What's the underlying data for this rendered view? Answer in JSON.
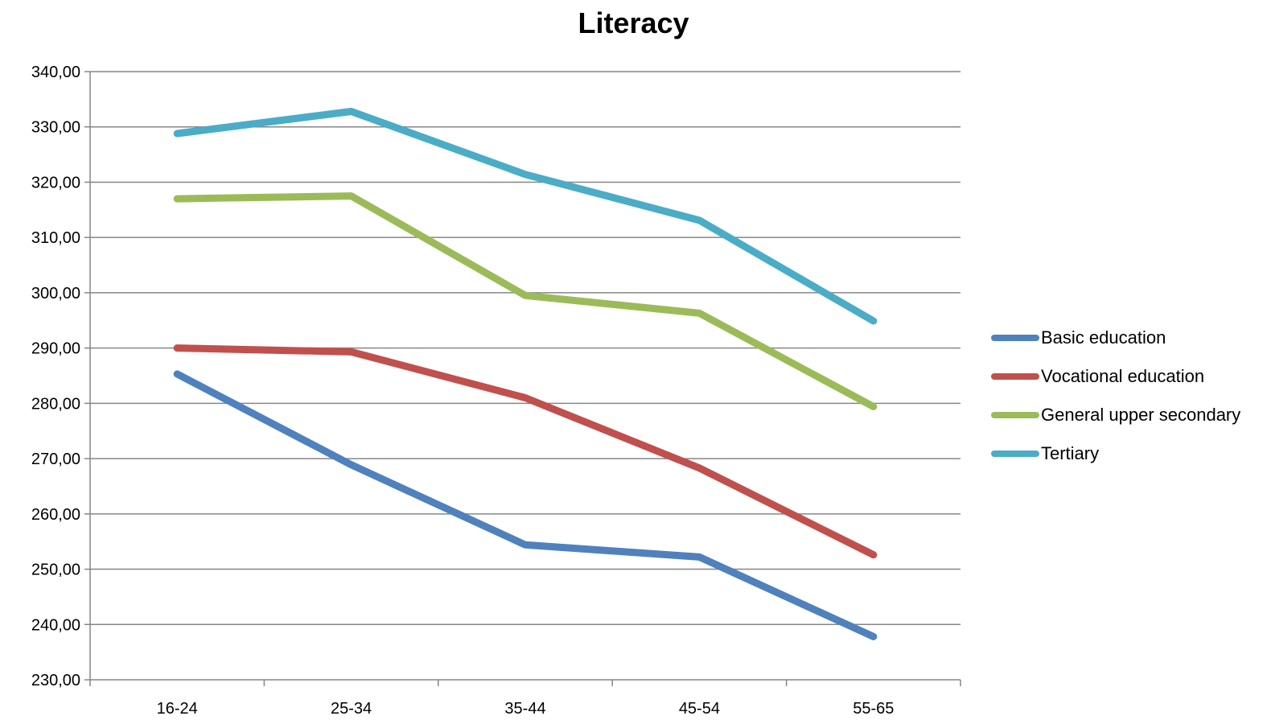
{
  "chart_data": {
    "type": "line",
    "title": "Literacy",
    "xlabel": "",
    "ylabel": "",
    "categories": [
      "16-24",
      "25-34",
      "35-44",
      "45-54",
      "55-65"
    ],
    "ylim": [
      230,
      340
    ],
    "y_ticks": [
      "230,00",
      "240,00",
      "250,00",
      "260,00",
      "270,00",
      "280,00",
      "290,00",
      "300,00",
      "310,00",
      "320,00",
      "330,00",
      "340,00"
    ],
    "grid": true,
    "legend_position": "right",
    "series": [
      {
        "name": "Basic education",
        "color": "#4F81BD",
        "values": [
          285.3,
          268.9,
          254.4,
          252.2,
          237.8
        ]
      },
      {
        "name": "Vocational education",
        "color": "#C0504D",
        "values": [
          290.0,
          289.3,
          281.0,
          268.3,
          252.6
        ]
      },
      {
        "name": "General upper secondary",
        "color": "#9BBB59",
        "values": [
          317.0,
          317.5,
          299.5,
          296.3,
          279.4
        ]
      },
      {
        "name": "Tertiary",
        "color": "#4BACC6",
        "values": [
          328.8,
          332.8,
          321.4,
          313.1,
          294.9
        ]
      }
    ]
  }
}
